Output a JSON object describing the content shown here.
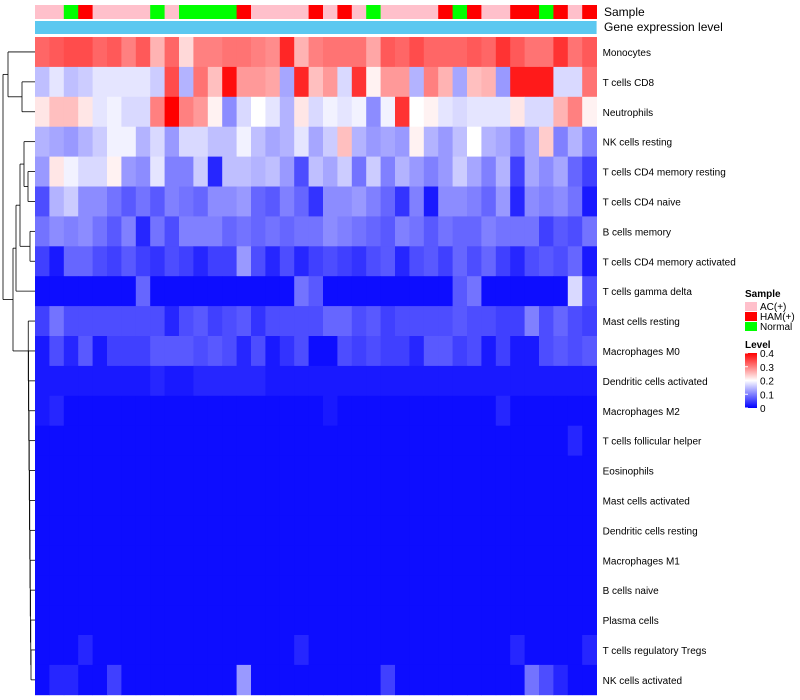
{
  "chart_data": {
    "type": "heatmap",
    "annotation_labels": {
      "sample": "Sample",
      "gene_expression": "Gene expression level"
    },
    "rows": [
      "Monocytes",
      "T cells CD8",
      "Neutrophils",
      "NK cells resting",
      "T cells CD4 memory resting",
      "T cells CD4 naive",
      "B cells memory",
      "T cells CD4 memory activated",
      "T cells gamma delta",
      "Mast cells resting",
      "Macrophages M0",
      "Dendritic cells activated",
      "Macrophages M2",
      "T cells follicular helper",
      "Eosinophils",
      "Mast cells activated",
      "Dendritic cells resting",
      "Macrophages M1",
      "B cells naive",
      "Plasma cells",
      "T cells regulatory  Tregs",
      "NK cells activated"
    ],
    "sample_groups": [
      "AC",
      "AC",
      "N",
      "H",
      "AC",
      "AC",
      "AC",
      "AC",
      "N",
      "AC",
      "N",
      "N",
      "N",
      "N",
      "H",
      "AC",
      "AC",
      "AC",
      "AC",
      "H",
      "AC",
      "H",
      "AC",
      "N",
      "AC",
      "AC",
      "AC",
      "AC",
      "H",
      "N",
      "H",
      "AC",
      "AC",
      "H",
      "H",
      "N",
      "H",
      "AC",
      "H"
    ],
    "legend_sample": {
      "title": "Sample",
      "entries": [
        {
          "key": "AC",
          "label": "AC(+)",
          "color": "#FFC0CB"
        },
        {
          "key": "H",
          "label": "HAM(+)",
          "color": "#FF0000"
        },
        {
          "key": "N",
          "label": "Normal",
          "color": "#00FF00"
        }
      ]
    },
    "legend_level": {
      "title": "Level",
      "ticks": [
        "0.4",
        "0.3",
        "0.2",
        "0.1",
        "0"
      ]
    },
    "color_scale": {
      "low": "#0000FF",
      "mid": "#FFFFFF",
      "high": "#FF0000",
      "min": 0,
      "mid_value": 0.2,
      "max": 0.4
    },
    "gene_expression_color": "#5BC8F0",
    "values": [
      [
        0.32,
        0.33,
        0.34,
        0.34,
        0.32,
        0.33,
        0.3,
        0.33,
        0.26,
        0.32,
        0.23,
        0.3,
        0.3,
        0.31,
        0.31,
        0.3,
        0.29,
        0.37,
        0.26,
        0.3,
        0.31,
        0.31,
        0.31,
        0.27,
        0.33,
        0.32,
        0.34,
        0.32,
        0.32,
        0.32,
        0.33,
        0.32,
        0.36,
        0.33,
        0.31,
        0.31,
        0.36,
        0.31,
        0.33
      ],
      [
        0.15,
        0.18,
        0.15,
        0.16,
        0.18,
        0.18,
        0.18,
        0.18,
        0.16,
        0.34,
        0.14,
        0.31,
        0.25,
        0.39,
        0.28,
        0.28,
        0.27,
        0.13,
        0.37,
        0.25,
        0.28,
        0.17,
        0.36,
        0.21,
        0.28,
        0.28,
        0.14,
        0.3,
        0.26,
        0.13,
        0.25,
        0.26,
        0.12,
        0.38,
        0.38,
        0.38,
        0.17,
        0.17,
        0.31
      ],
      [
        0.22,
        0.25,
        0.25,
        0.22,
        0.18,
        0.19,
        0.17,
        0.17,
        0.3,
        0.4,
        0.3,
        0.28,
        0.21,
        0.11,
        0.17,
        0.2,
        0.18,
        0.14,
        0.22,
        0.17,
        0.19,
        0.18,
        0.19,
        0.11,
        0.19,
        0.36,
        0.2,
        0.21,
        0.18,
        0.17,
        0.18,
        0.18,
        0.18,
        0.22,
        0.17,
        0.17,
        0.26,
        0.3,
        0.21
      ],
      [
        0.14,
        0.13,
        0.12,
        0.14,
        0.16,
        0.19,
        0.19,
        0.14,
        0.17,
        0.12,
        0.17,
        0.17,
        0.15,
        0.15,
        0.19,
        0.15,
        0.13,
        0.14,
        0.18,
        0.13,
        0.16,
        0.25,
        0.14,
        0.12,
        0.13,
        0.12,
        0.21,
        0.14,
        0.12,
        0.15,
        0.2,
        0.14,
        0.13,
        0.1,
        0.13,
        0.24,
        0.1,
        0.14,
        0.1
      ],
      [
        0.12,
        0.22,
        0.19,
        0.17,
        0.17,
        0.21,
        0.12,
        0.11,
        0.18,
        0.1,
        0.1,
        0.16,
        0.03,
        0.15,
        0.15,
        0.14,
        0.15,
        0.12,
        0.06,
        0.15,
        0.13,
        0.16,
        0.09,
        0.16,
        0.1,
        0.14,
        0.12,
        0.1,
        0.12,
        0.16,
        0.13,
        0.1,
        0.14,
        0.05,
        0.13,
        0.11,
        0.13,
        0.08,
        0.05
      ],
      [
        0.06,
        0.14,
        0.16,
        0.11,
        0.11,
        0.09,
        0.07,
        0.09,
        0.07,
        0.1,
        0.09,
        0.08,
        0.11,
        0.11,
        0.12,
        0.08,
        0.07,
        0.1,
        0.08,
        0.04,
        0.11,
        0.11,
        0.12,
        0.1,
        0.08,
        0.04,
        0.1,
        0.02,
        0.11,
        0.11,
        0.1,
        0.08,
        0.12,
        0.03,
        0.11,
        0.1,
        0.11,
        0.09,
        0.02
      ],
      [
        0.09,
        0.11,
        0.1,
        0.11,
        0.09,
        0.07,
        0.1,
        0.03,
        0.09,
        0.06,
        0.1,
        0.1,
        0.1,
        0.08,
        0.09,
        0.08,
        0.09,
        0.08,
        0.09,
        0.09,
        0.11,
        0.1,
        0.09,
        0.08,
        0.07,
        0.1,
        0.09,
        0.07,
        0.09,
        0.08,
        0.08,
        0.1,
        0.09,
        0.09,
        0.09,
        0.05,
        0.07,
        0.06,
        0.09
      ],
      [
        0.05,
        0.02,
        0.08,
        0.08,
        0.06,
        0.05,
        0.07,
        0.05,
        0.04,
        0.06,
        0.05,
        0.03,
        0.05,
        0.05,
        0.12,
        0.06,
        0.03,
        0.06,
        0.03,
        0.05,
        0.06,
        0.05,
        0.04,
        0.06,
        0.07,
        0.03,
        0.06,
        0.07,
        0.05,
        0.08,
        0.06,
        0.08,
        0.05,
        0.03,
        0.06,
        0.07,
        0.06,
        0.08,
        0.02
      ],
      [
        0.01,
        0.01,
        0.01,
        0.01,
        0.01,
        0.01,
        0.01,
        0.08,
        0.01,
        0.01,
        0.01,
        0.01,
        0.01,
        0.01,
        0.01,
        0.01,
        0.01,
        0.01,
        0.09,
        0.07,
        0.01,
        0.01,
        0.01,
        0.01,
        0.01,
        0.01,
        0.01,
        0.01,
        0.01,
        0.07,
        0.09,
        0.01,
        0.01,
        0.01,
        0.01,
        0.01,
        0.01,
        0.17,
        0.06
      ],
      [
        0.05,
        0.09,
        0.06,
        0.06,
        0.06,
        0.06,
        0.06,
        0.06,
        0.06,
        0.03,
        0.06,
        0.07,
        0.05,
        0.06,
        0.07,
        0.04,
        0.06,
        0.06,
        0.06,
        0.06,
        0.08,
        0.08,
        0.06,
        0.07,
        0.05,
        0.06,
        0.06,
        0.06,
        0.06,
        0.07,
        0.06,
        0.06,
        0.05,
        0.05,
        0.1,
        0.06,
        0.08,
        0.06,
        0.05
      ],
      [
        0.02,
        0.06,
        0.03,
        0.07,
        0.02,
        0.05,
        0.05,
        0.05,
        0.07,
        0.07,
        0.07,
        0.06,
        0.07,
        0.06,
        0.03,
        0.06,
        0.02,
        0.04,
        0.06,
        0.01,
        0.01,
        0.06,
        0.05,
        0.06,
        0.05,
        0.05,
        0.03,
        0.07,
        0.07,
        0.05,
        0.06,
        0.02,
        0.05,
        0.02,
        0.02,
        0.06,
        0.07,
        0.06,
        0.07
      ],
      [
        0.02,
        0.02,
        0.02,
        0.02,
        0.02,
        0.02,
        0.02,
        0.02,
        0.03,
        0.02,
        0.02,
        0.03,
        0.03,
        0.03,
        0.03,
        0.03,
        0.02,
        0.02,
        0.02,
        0.02,
        0.02,
        0.02,
        0.02,
        0.02,
        0.02,
        0.02,
        0.02,
        0.02,
        0.02,
        0.02,
        0.02,
        0.02,
        0.02,
        0.02,
        0.02,
        0.02,
        0.02,
        0.02,
        0.02
      ],
      [
        0.02,
        0.03,
        0.01,
        0.01,
        0.01,
        0.01,
        0.01,
        0.01,
        0.01,
        0.01,
        0.01,
        0.01,
        0.01,
        0.01,
        0.01,
        0.01,
        0.01,
        0.01,
        0.01,
        0.01,
        0.02,
        0.01,
        0.01,
        0.01,
        0.01,
        0.01,
        0.01,
        0.01,
        0.01,
        0.01,
        0.01,
        0.01,
        0.03,
        0.01,
        0.01,
        0.01,
        0.01,
        0.01,
        0.01
      ],
      [
        0.01,
        0.01,
        0.01,
        0.01,
        0.01,
        0.01,
        0.01,
        0.01,
        0.01,
        0.01,
        0.01,
        0.01,
        0.01,
        0.01,
        0.01,
        0.01,
        0.01,
        0.01,
        0.01,
        0.01,
        0.01,
        0.01,
        0.01,
        0.01,
        0.01,
        0.01,
        0.01,
        0.01,
        0.01,
        0.01,
        0.01,
        0.01,
        0.01,
        0.01,
        0.01,
        0.01,
        0.01,
        0.03,
        0.01
      ],
      [
        0.01,
        0.01,
        0.01,
        0.01,
        0.01,
        0.01,
        0.01,
        0.01,
        0.01,
        0.01,
        0.01,
        0.01,
        0.01,
        0.01,
        0.01,
        0.01,
        0.01,
        0.01,
        0.01,
        0.01,
        0.01,
        0.01,
        0.01,
        0.01,
        0.01,
        0.01,
        0.01,
        0.01,
        0.01,
        0.01,
        0.01,
        0.01,
        0.01,
        0.01,
        0.01,
        0.01,
        0.01,
        0.01,
        0.01
      ],
      [
        0.01,
        0.01,
        0.01,
        0.01,
        0.01,
        0.01,
        0.01,
        0.01,
        0.01,
        0.01,
        0.01,
        0.01,
        0.01,
        0.01,
        0.01,
        0.01,
        0.01,
        0.01,
        0.01,
        0.01,
        0.01,
        0.01,
        0.01,
        0.01,
        0.01,
        0.01,
        0.01,
        0.01,
        0.01,
        0.01,
        0.01,
        0.01,
        0.01,
        0.01,
        0.01,
        0.01,
        0.01,
        0.01,
        0.01
      ],
      [
        0.01,
        0.01,
        0.01,
        0.01,
        0.01,
        0.01,
        0.01,
        0.01,
        0.01,
        0.01,
        0.01,
        0.01,
        0.01,
        0.01,
        0.01,
        0.01,
        0.01,
        0.01,
        0.01,
        0.01,
        0.01,
        0.01,
        0.01,
        0.01,
        0.01,
        0.01,
        0.01,
        0.01,
        0.01,
        0.01,
        0.01,
        0.01,
        0.01,
        0.01,
        0.01,
        0.01,
        0.01,
        0.01,
        0.01
      ],
      [
        0.01,
        0.01,
        0.01,
        0.01,
        0.01,
        0.01,
        0.01,
        0.01,
        0.01,
        0.01,
        0.01,
        0.01,
        0.01,
        0.01,
        0.01,
        0.01,
        0.01,
        0.01,
        0.01,
        0.01,
        0.01,
        0.01,
        0.01,
        0.01,
        0.01,
        0.01,
        0.01,
        0.01,
        0.01,
        0.01,
        0.01,
        0.01,
        0.01,
        0.01,
        0.01,
        0.01,
        0.01,
        0.01,
        0.01
      ],
      [
        0.01,
        0.01,
        0.01,
        0.01,
        0.01,
        0.01,
        0.01,
        0.01,
        0.01,
        0.01,
        0.01,
        0.01,
        0.01,
        0.01,
        0.01,
        0.01,
        0.01,
        0.01,
        0.01,
        0.01,
        0.01,
        0.01,
        0.01,
        0.01,
        0.01,
        0.01,
        0.01,
        0.01,
        0.01,
        0.01,
        0.01,
        0.01,
        0.01,
        0.01,
        0.01,
        0.01,
        0.01,
        0.01,
        0.01
      ],
      [
        0.01,
        0.01,
        0.01,
        0.01,
        0.01,
        0.01,
        0.01,
        0.01,
        0.01,
        0.01,
        0.01,
        0.01,
        0.01,
        0.01,
        0.01,
        0.01,
        0.01,
        0.01,
        0.01,
        0.01,
        0.01,
        0.01,
        0.01,
        0.01,
        0.01,
        0.01,
        0.01,
        0.01,
        0.01,
        0.01,
        0.01,
        0.01,
        0.01,
        0.01,
        0.01,
        0.01,
        0.01,
        0.01,
        0.01
      ],
      [
        0.01,
        0.01,
        0.01,
        0.03,
        0.01,
        0.01,
        0.01,
        0.01,
        0.01,
        0.01,
        0.01,
        0.01,
        0.01,
        0.01,
        0.01,
        0.01,
        0.01,
        0.01,
        0.03,
        0.01,
        0.01,
        0.01,
        0.01,
        0.01,
        0.01,
        0.01,
        0.01,
        0.01,
        0.01,
        0.01,
        0.01,
        0.01,
        0.01,
        0.03,
        0.01,
        0.01,
        0.01,
        0.01,
        0.03
      ],
      [
        0.01,
        0.03,
        0.03,
        0.01,
        0.01,
        0.05,
        0.01,
        0.01,
        0.01,
        0.01,
        0.01,
        0.01,
        0.01,
        0.01,
        0.12,
        0.01,
        0.01,
        0.01,
        0.01,
        0.01,
        0.01,
        0.01,
        0.01,
        0.01,
        0.05,
        0.01,
        0.01,
        0.01,
        0.01,
        0.01,
        0.01,
        0.01,
        0.01,
        0.01,
        0.09,
        0.06,
        0.03,
        0.01,
        0.01
      ]
    ]
  }
}
